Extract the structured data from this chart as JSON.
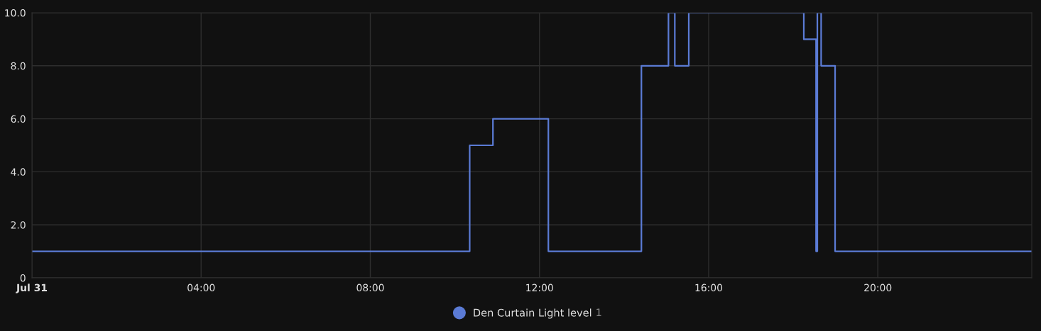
{
  "chart_data": {
    "type": "step",
    "x": [
      0,
      10.35,
      10.9,
      12.21,
      14.41,
      15.05,
      15.2,
      15.53,
      18.25,
      18.54,
      18.57,
      18.66,
      18.99,
      23.64
    ],
    "series": [
      {
        "name": "Den Curtain Light level",
        "color": "#5b7bd5",
        "values": [
          1,
          5,
          6,
          1,
          8,
          10,
          8,
          10,
          9,
          1,
          10,
          8,
          1,
          1
        ]
      }
    ],
    "xlim": [
      0,
      23.64
    ],
    "xticks": [
      {
        "value": 0,
        "label": "Jul 31"
      },
      {
        "value": 4,
        "label": "04:00"
      },
      {
        "value": 8,
        "label": "08:00"
      },
      {
        "value": 12,
        "label": "12:00"
      },
      {
        "value": 16,
        "label": "16:00"
      },
      {
        "value": 20,
        "label": "20:00"
      }
    ],
    "ylim": [
      0,
      10
    ],
    "yticks": [
      0,
      {
        "value": 2,
        "label": "2.0"
      },
      {
        "value": 4,
        "label": "4.0"
      },
      {
        "value": 6,
        "label": "6.0"
      },
      {
        "value": 8,
        "label": "8.0"
      },
      {
        "value": 10,
        "label": "10.0"
      }
    ],
    "grid": true,
    "legend": "bottom",
    "annotations": [
      "1"
    ]
  }
}
